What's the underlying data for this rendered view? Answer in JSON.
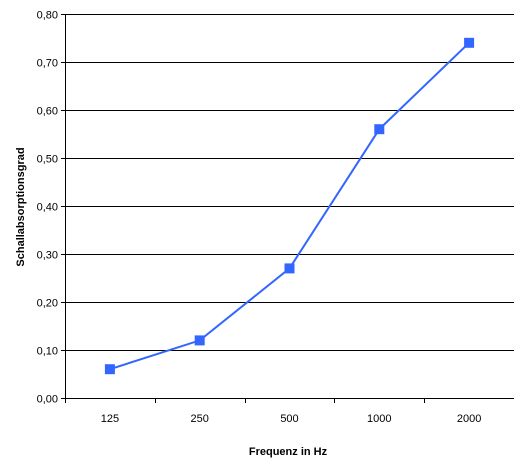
{
  "chart_data": {
    "type": "line",
    "title": "",
    "xlabel": "Frequenz in Hz",
    "ylabel": "Schallabsorptionsgrad",
    "categories": [
      "125",
      "250",
      "500",
      "1000",
      "2000"
    ],
    "series": [
      {
        "values": [
          0.06,
          0.12,
          0.27,
          0.56,
          0.74
        ],
        "color": "#3366ff",
        "marker": "square"
      }
    ],
    "ylim": [
      0,
      0.8
    ],
    "yticks": [
      0.0,
      0.1,
      0.2,
      0.3,
      0.4,
      0.5,
      0.6,
      0.7,
      0.8
    ],
    "ytick_labels": [
      "0,00",
      "0,10",
      "0,20",
      "0,30",
      "0,40",
      "0,50",
      "0,60",
      "0,70",
      "0,80"
    ],
    "grid": "horizontal",
    "legend": "none"
  }
}
